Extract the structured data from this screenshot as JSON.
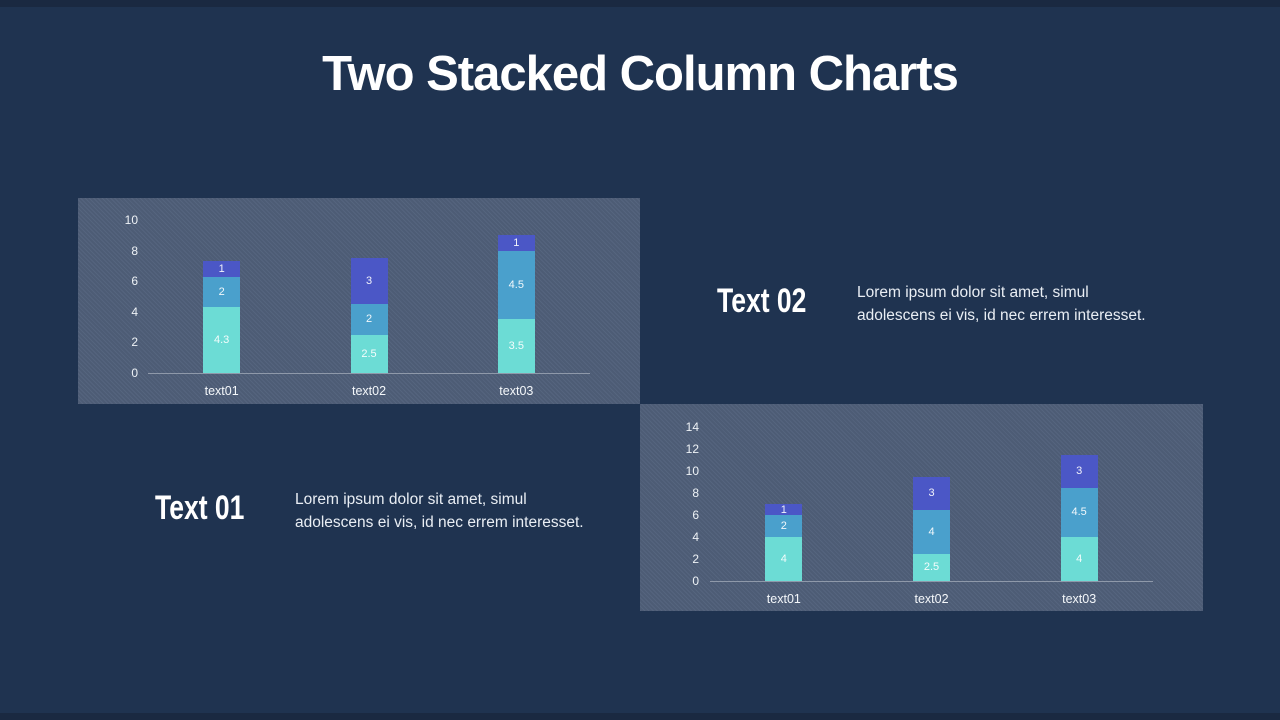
{
  "slide": {
    "title": "Two Stacked Column Charts",
    "background_color": "#1f3350",
    "panel_color": "#4f5f79"
  },
  "colors": {
    "teal": "#6CDCD5",
    "blue": "#4AA0CC",
    "indigo": "#4B57C6",
    "axis": "#a9b2bf"
  },
  "text_blocks": [
    {
      "heading": "Text 01",
      "body_lines": [
        "Lorem ipsum dolor sit amet, simul",
        "adolescens ei vis, id nec errem interesset."
      ]
    },
    {
      "heading": "Text 02",
      "body_lines": [
        "Lorem ipsum dolor sit amet, simul",
        "adolescens ei vis, id nec errem interesset."
      ]
    }
  ],
  "chart_data": [
    {
      "type": "bar",
      "subtype": "stacked-column",
      "title": "",
      "categories": [
        "text01",
        "text02",
        "text03"
      ],
      "series": [
        {
          "name": "bottom-segment",
          "color": "#6CDCD5",
          "values": [
            4.3,
            2.5,
            3.5
          ]
        },
        {
          "name": "middle-segment",
          "color": "#4AA0CC",
          "values": [
            2,
            2,
            4.5
          ]
        },
        {
          "name": "top-segment",
          "color": "#4B57C6",
          "values": [
            1,
            3,
            1
          ]
        }
      ],
      "stacked_totals": [
        7.3,
        7.5,
        9
      ],
      "ylim": [
        0,
        10
      ],
      "yticks": [
        0,
        2,
        4,
        6,
        8,
        10
      ],
      "xlabel": "",
      "ylabel": "",
      "grid": false,
      "legend": "none",
      "data_labels": true
    },
    {
      "type": "bar",
      "subtype": "stacked-column",
      "title": "",
      "categories": [
        "text01",
        "text02",
        "text03"
      ],
      "series": [
        {
          "name": "bottom-segment",
          "color": "#6CDCD5",
          "values": [
            4,
            2.5,
            4
          ]
        },
        {
          "name": "middle-segment",
          "color": "#4AA0CC",
          "values": [
            2,
            4,
            4.5
          ]
        },
        {
          "name": "top-segment",
          "color": "#4B57C6",
          "values": [
            1,
            3,
            3
          ]
        }
      ],
      "stacked_totals": [
        7,
        9.5,
        11.5
      ],
      "ylim": [
        0,
        14
      ],
      "yticks": [
        0,
        2,
        4,
        6,
        8,
        10,
        12,
        14
      ],
      "xlabel": "",
      "ylabel": "",
      "grid": false,
      "legend": "none",
      "data_labels": true
    }
  ]
}
